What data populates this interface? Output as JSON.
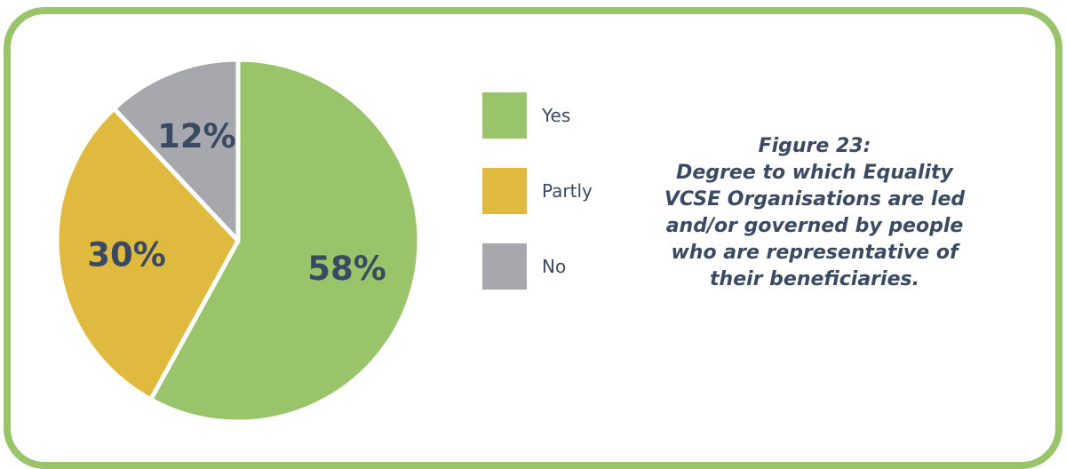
{
  "chart_data": {
    "type": "pie",
    "slices": [
      {
        "label": "Yes",
        "value": 58,
        "display": "58%",
        "color": "#9ac46a"
      },
      {
        "label": "Partly",
        "value": 30,
        "display": "30%",
        "color": "#e0b93f"
      },
      {
        "label": "No",
        "value": 12,
        "display": "12%",
        "color": "#a6a8ad"
      }
    ],
    "legend_position": "right",
    "title_lines": [
      "Figure 23:",
      "Degree to which Equality",
      "VCSE Organisations are led",
      "and/or governed by people",
      "who are representative of",
      "their beneficiaries."
    ]
  }
}
